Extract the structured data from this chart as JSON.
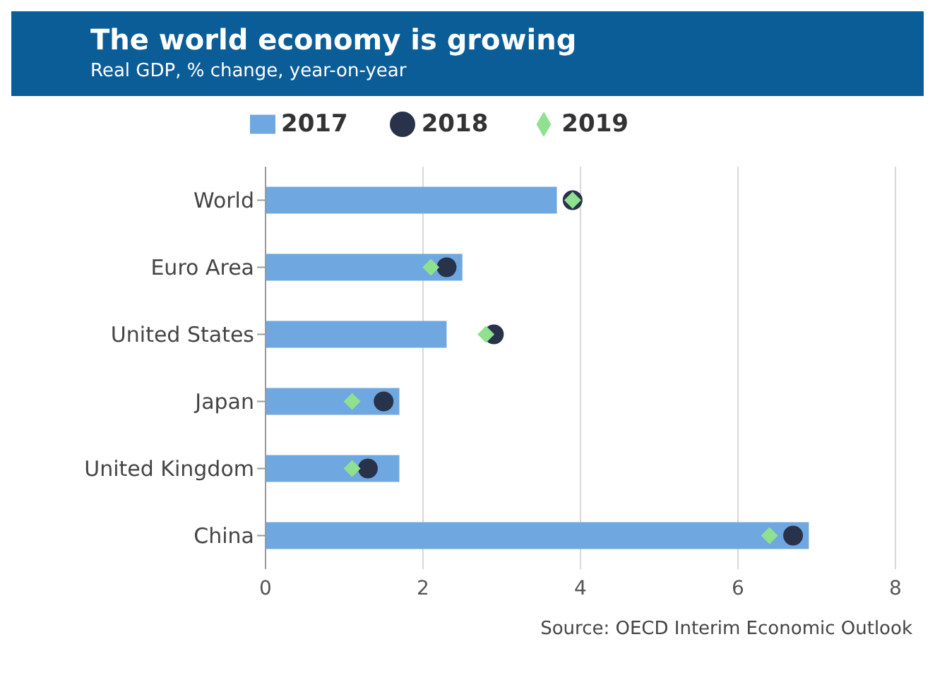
{
  "chart_data": {
    "type": "bar",
    "orientation": "horizontal",
    "title": "The world economy is growing",
    "subtitle": "Real GDP, % change, year-on-year",
    "categories": [
      "World",
      "Euro Area",
      "United States",
      "Japan",
      "United Kingdom",
      "China"
    ],
    "series": [
      {
        "name": "2017",
        "color": "#6fa8e0",
        "values": [
          3.7,
          2.5,
          2.3,
          1.7,
          1.7,
          6.9
        ]
      },
      {
        "name": "2018",
        "type": "scatter",
        "marker": "circle",
        "color": "#28324a",
        "values": [
          3.9,
          2.3,
          2.9,
          1.5,
          1.3,
          6.7
        ]
      },
      {
        "name": "2019",
        "type": "scatter",
        "marker": "diamond",
        "color": "#8fe08f",
        "values": [
          3.9,
          2.1,
          2.8,
          1.1,
          1.1,
          6.4
        ]
      }
    ],
    "xlim": [
      0,
      8
    ],
    "xticks": [
      0,
      2,
      4,
      6,
      8
    ],
    "grid": "x",
    "legend": "top",
    "annotations": [
      "Source: OECD Interim Economic Outlook"
    ]
  }
}
